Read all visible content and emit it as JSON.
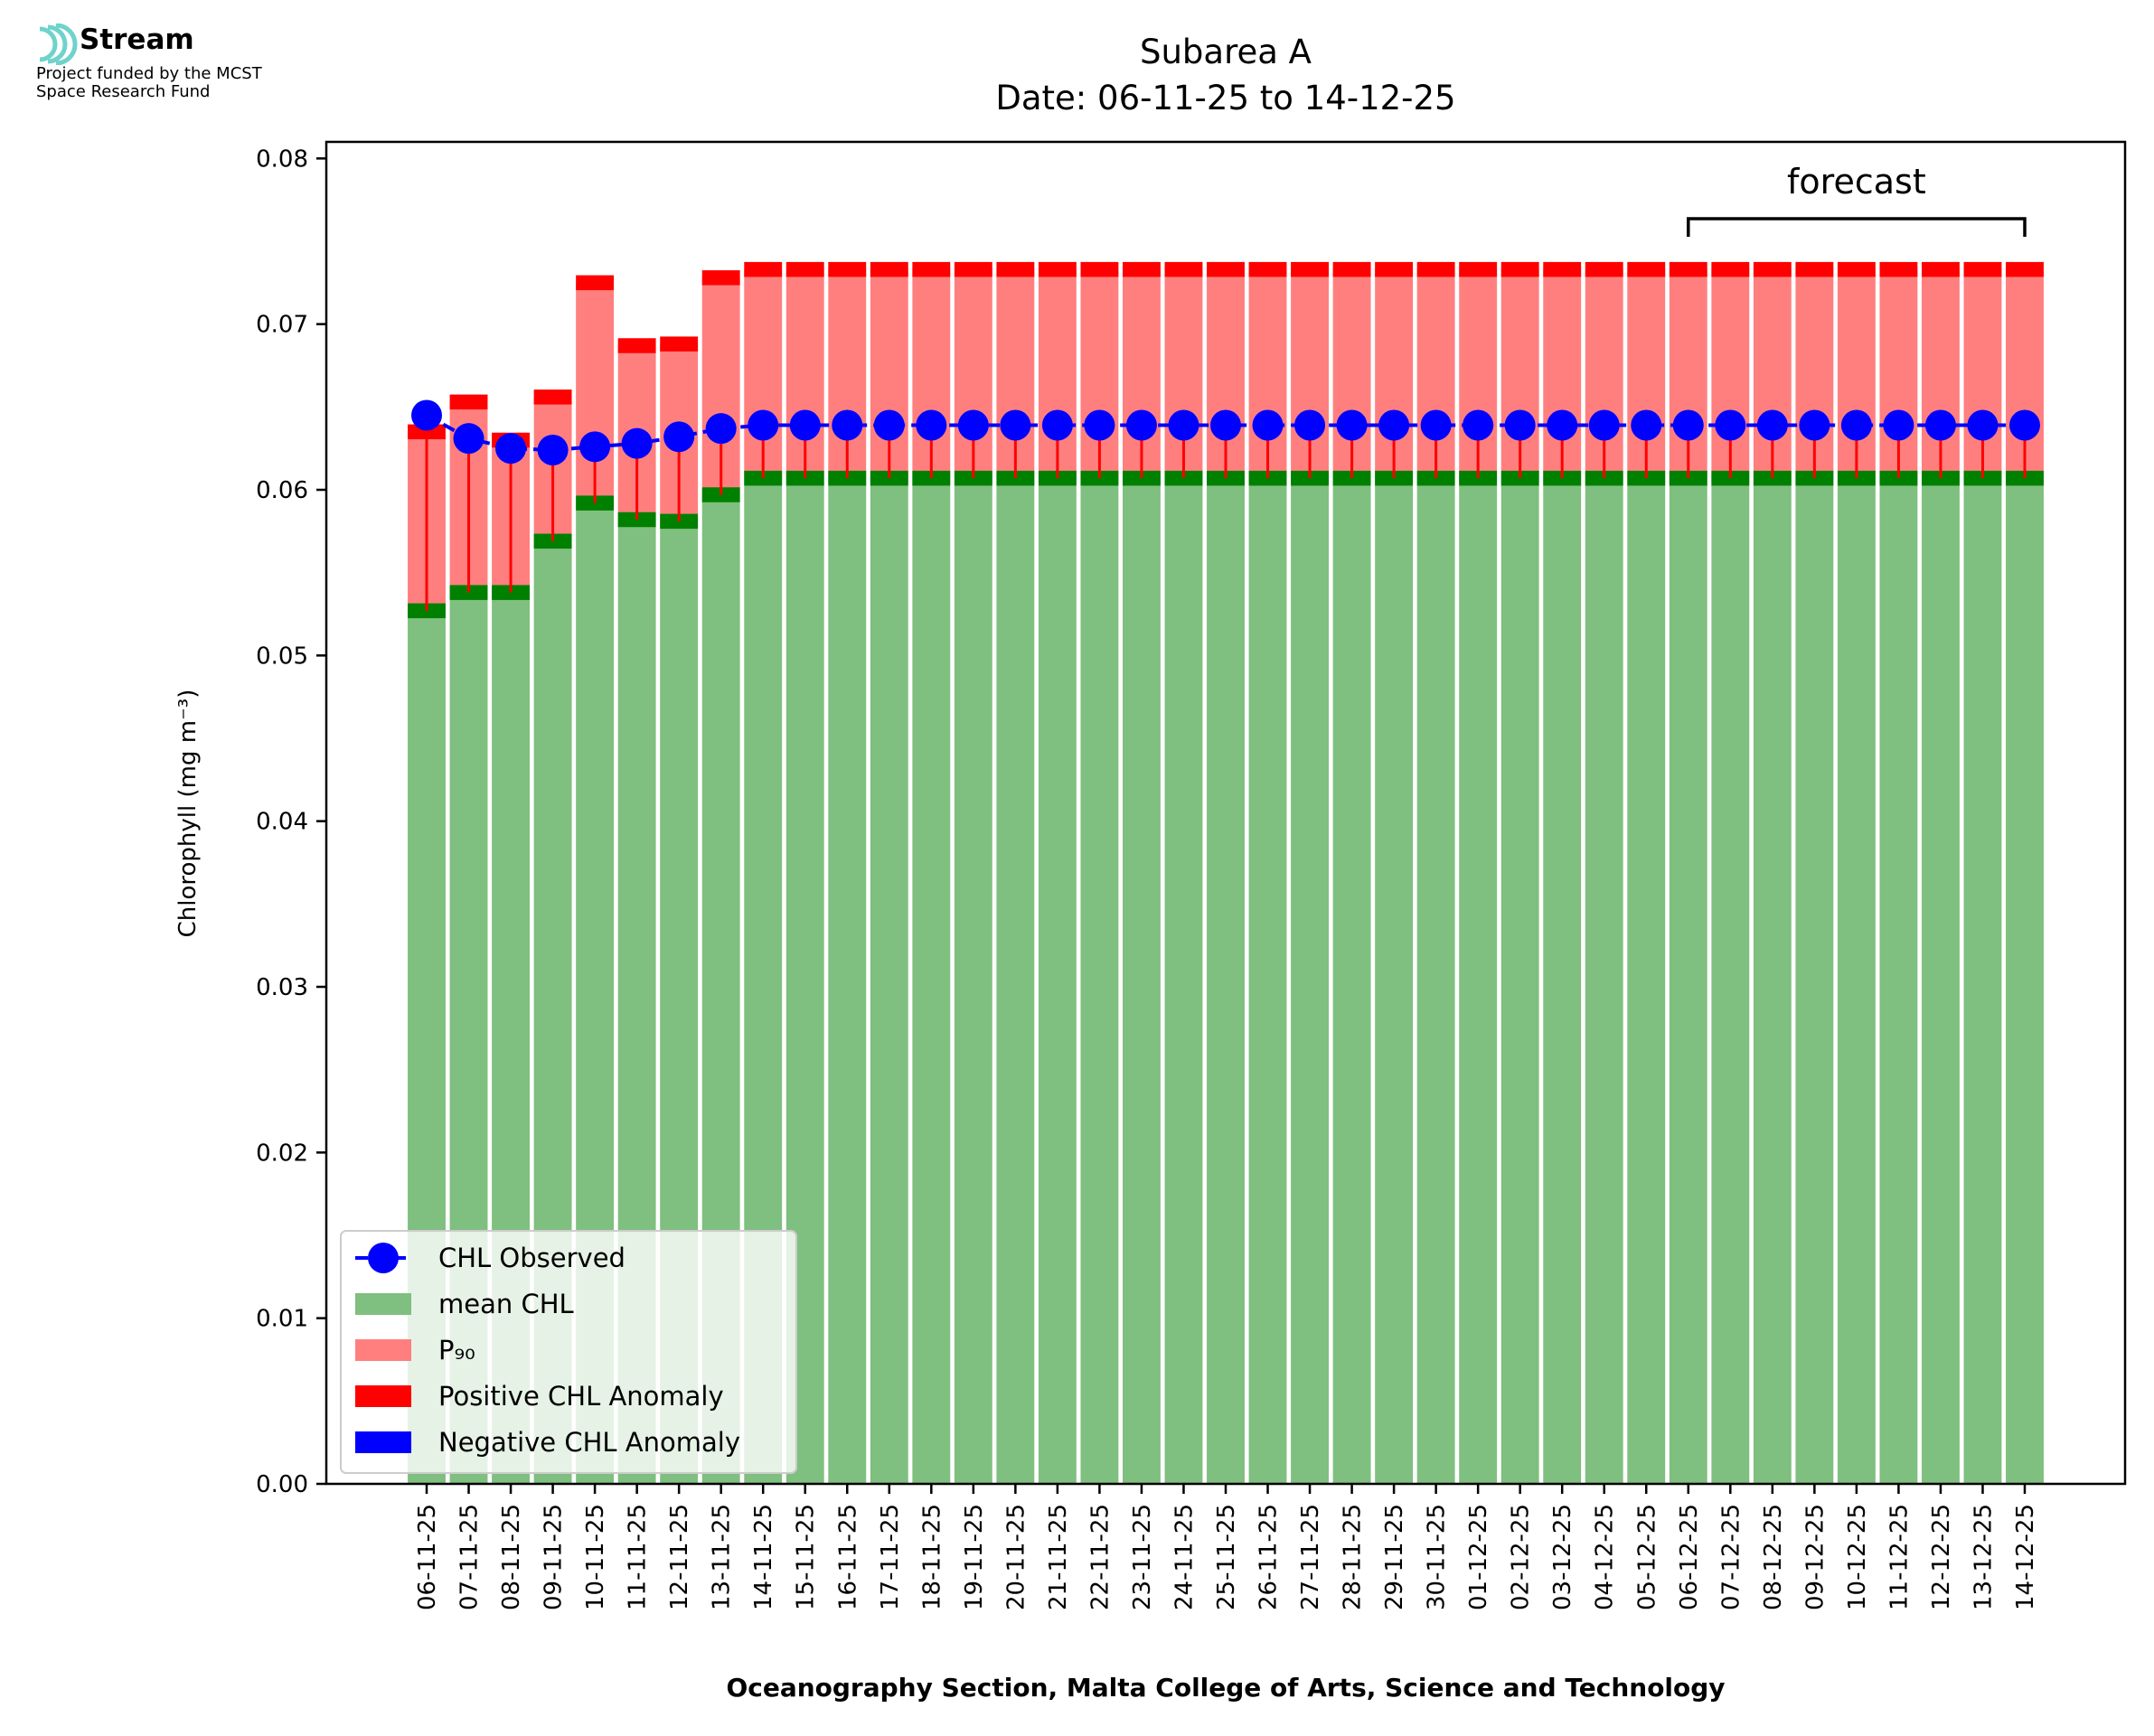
{
  "logo": {
    "name": "Stream",
    "line1": "Project funded by the MCST",
    "line2": "Space Research Fund"
  },
  "colors": {
    "mean": "#7fbf7f",
    "mean_band": "#008000",
    "p90": "#ff7f7f",
    "p90_band": "#ff0000",
    "observed": "#0000ff",
    "stem": "#ff0000"
  },
  "chart_data": {
    "type": "bar",
    "title": "Subarea A",
    "subtitle": "Date: 06-11-25 to 14-12-25",
    "xlabel": "Oceanography Section, Malta College of Arts, Science and Technology",
    "ylabel": "Chlorophyll (mg m⁻³)",
    "ylim": [
      0,
      0.081
    ],
    "yticks": [
      "0.00",
      "0.01",
      "0.02",
      "0.03",
      "0.04",
      "0.05",
      "0.06",
      "0.07",
      "0.08"
    ],
    "categories": [
      "06-11-25",
      "07-11-25",
      "08-11-25",
      "09-11-25",
      "10-11-25",
      "11-11-25",
      "12-11-25",
      "13-11-25",
      "14-11-25",
      "15-11-25",
      "16-11-25",
      "17-11-25",
      "18-11-25",
      "19-11-25",
      "20-11-25",
      "21-11-25",
      "22-11-25",
      "23-11-25",
      "24-11-25",
      "25-11-25",
      "26-11-25",
      "27-11-25",
      "28-11-25",
      "29-11-25",
      "30-11-25",
      "01-12-25",
      "02-12-25",
      "03-12-25",
      "04-12-25",
      "05-12-25",
      "06-12-25",
      "07-12-25",
      "08-12-25",
      "09-12-25",
      "10-12-25",
      "11-12-25",
      "12-12-25",
      "13-12-25",
      "14-12-25"
    ],
    "series": [
      {
        "name": "mean CHL",
        "values": [
          0.0527,
          0.0538,
          0.0538,
          0.0569,
          0.0592,
          0.0582,
          0.0581,
          0.0597,
          0.0607,
          0.0607,
          0.0607,
          0.0607,
          0.0607,
          0.0607,
          0.0607,
          0.0607,
          0.0607,
          0.0607,
          0.0607,
          0.0607,
          0.0607,
          0.0607,
          0.0607,
          0.0607,
          0.0607,
          0.0607,
          0.0607,
          0.0607,
          0.0607,
          0.0607,
          0.0607,
          0.0607,
          0.0607,
          0.0607,
          0.0607,
          0.0607,
          0.0607,
          0.0607,
          0.0607
        ]
      },
      {
        "name": "P₉₀",
        "values": [
          0.0635,
          0.0653,
          0.063,
          0.0656,
          0.0725,
          0.0687,
          0.0688,
          0.0728,
          0.0733,
          0.0733,
          0.0733,
          0.0733,
          0.0733,
          0.0733,
          0.0733,
          0.0733,
          0.0733,
          0.0733,
          0.0733,
          0.0733,
          0.0733,
          0.0733,
          0.0733,
          0.0733,
          0.0733,
          0.0733,
          0.0733,
          0.0733,
          0.0733,
          0.0733,
          0.0733,
          0.0733,
          0.0733,
          0.0733,
          0.0733,
          0.0733,
          0.0733,
          0.0733,
          0.0733
        ]
      },
      {
        "name": "CHL Observed",
        "values": [
          0.0645,
          0.0631,
          0.0625,
          0.0624,
          0.0626,
          0.0628,
          0.0632,
          0.0637,
          0.0639,
          0.0639,
          0.0639,
          0.0639,
          0.0639,
          0.0639,
          0.0639,
          0.0639,
          0.0639,
          0.0639,
          0.0639,
          0.0639,
          0.0639,
          0.0639,
          0.0639,
          0.0639,
          0.0639,
          0.0639,
          0.0639,
          0.0639,
          0.0639,
          0.0639,
          0.0639,
          0.0639,
          0.0639,
          0.0639,
          0.0639,
          0.0639,
          0.0639,
          0.0639,
          0.0639
        ]
      }
    ],
    "annotation": {
      "text": "forecast",
      "from": "06-12-25",
      "to": "14-12-25"
    },
    "legend": {
      "position": "lower-left",
      "entries": [
        "CHL Observed",
        "mean CHL",
        "P₉₀",
        "Positive CHL Anomaly",
        "Negative CHL Anomaly"
      ]
    }
  }
}
